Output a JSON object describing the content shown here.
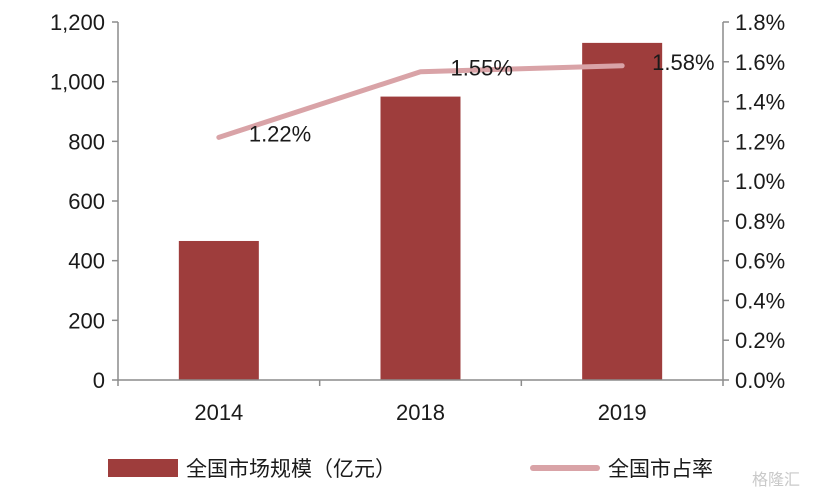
{
  "chart_data": {
    "type": "bar",
    "categories": [
      "2014",
      "2018",
      "2019"
    ],
    "series": [
      {
        "name": "全国市场规模（亿元）",
        "type": "bar",
        "axis": "left",
        "values": [
          466,
          950,
          1130
        ]
      },
      {
        "name": "全国市占率",
        "type": "line",
        "axis": "right",
        "values": [
          1.22,
          1.55,
          1.58
        ],
        "data_labels": [
          "1.22%",
          "1.55%",
          "1.58%"
        ]
      }
    ],
    "y_left": {
      "ylim": [
        0,
        1200
      ],
      "ticks": [
        0,
        200,
        400,
        600,
        800,
        1000,
        1200
      ],
      "tick_labels": [
        "0",
        "200",
        "400",
        "600",
        "800",
        "1,000",
        "1,200"
      ]
    },
    "y_right": {
      "ylim": [
        0,
        1.8
      ],
      "ticks": [
        0,
        0.2,
        0.4,
        0.6,
        0.8,
        1.0,
        1.2,
        1.4,
        1.6,
        1.8
      ],
      "tick_labels": [
        "0.0%",
        "0.2%",
        "0.4%",
        "0.6%",
        "0.8%",
        "1.0%",
        "1.2%",
        "1.4%",
        "1.6%",
        "1.8%"
      ]
    },
    "grid": false,
    "legend_position": "bottom",
    "colors": {
      "bar": "#9e3d3c",
      "line": "#d9a3a7",
      "axis": "#8c8c8c"
    }
  },
  "watermark": "格隆汇"
}
